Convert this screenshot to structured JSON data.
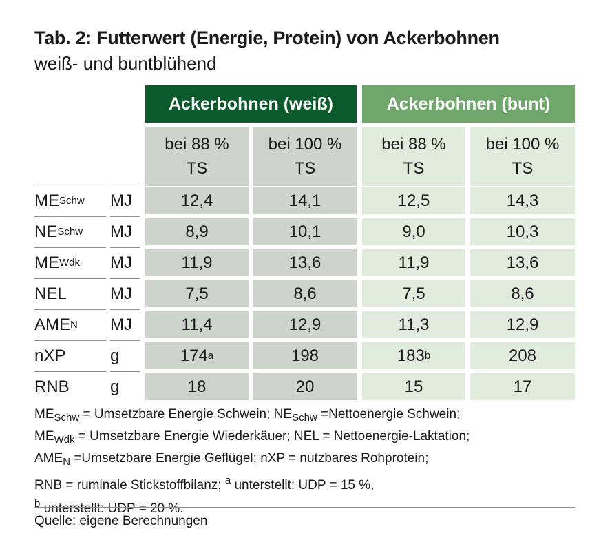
{
  "title": "Tab. 2: Futterwert (Energie, Protein) von Ackerbohnen",
  "subtitle": "weiß- und buntblühend",
  "groups": {
    "white": "Ackerbohnen (weiß)",
    "colored": "Ackerbohnen (bunt)"
  },
  "columns": [
    {
      "line1": "bei 88 %",
      "line2": "TS"
    },
    {
      "line1": "bei 100 %",
      "line2": "TS"
    },
    {
      "line1": "bei 88 %",
      "line2": "TS"
    },
    {
      "line1": "bei 100 %",
      "line2": "TS"
    }
  ],
  "rows": [
    {
      "label": "ME",
      "label_sub": "Schw",
      "unit": "MJ",
      "values": [
        "12,4",
        "14,1",
        "12,5",
        "14,3"
      ]
    },
    {
      "label": "NE",
      "label_sub": "Schw",
      "unit": "MJ",
      "values": [
        "8,9",
        "10,1",
        "9,0",
        "10,3"
      ]
    },
    {
      "label": "ME",
      "label_sub": "Wdk",
      "unit": "MJ",
      "values": [
        "11,9",
        "13,6",
        "11,9",
        "13,6"
      ]
    },
    {
      "label": "NEL",
      "label_sub": "",
      "unit": "MJ",
      "values": [
        "7,5",
        "8,6",
        "7,5",
        "8,6"
      ]
    },
    {
      "label": "AME",
      "label_sub": "N",
      "unit": "MJ",
      "values": [
        "11,4",
        "12,9",
        "11,3",
        "12,9"
      ]
    },
    {
      "label": "nXP",
      "label_sub": "",
      "unit": "g",
      "values": [
        "174",
        "198",
        "183",
        "208"
      ],
      "value_sups": [
        "a",
        "",
        "b",
        ""
      ]
    },
    {
      "label": "RNB",
      "label_sub": "",
      "unit": "g",
      "values": [
        "18",
        "20",
        "15",
        "17"
      ]
    }
  ],
  "notes": {
    "line1": {
      "t1": "ME",
      "s1": "Schw",
      "t2": " = Umsetzbare Energie Schwein; NE",
      "s2": "Schw",
      "t3": " =Nettoenergie Schwein;"
    },
    "line2": {
      "t1": "ME",
      "s1": "Wdk",
      "t2": " = Umsetzbare Energie Wiederkäuer; NEL = Nettoenergie-Laktation;"
    },
    "line3": {
      "t1": "AME",
      "s1": "N",
      "t2": " =Umsetzbare Energie Geflügel; nXP = nutzbares Rohprotein;"
    },
    "line4": {
      "t1": "RNB = ruminale Stickstoffbilanz; ",
      "sup1": "a",
      "t2": " unterstellt: UDP = 15 %,"
    },
    "line5": {
      "sup1": "b",
      "t2": " unterstellt: UDP = 20 %."
    }
  },
  "source": "Quelle: eigene Berechnungen",
  "colors": {
    "dark_green": "#0b5a2c",
    "light_green": "#6fa66b",
    "gray_cell": "#cdd4cc",
    "pale_green_cell": "#e0ebdd"
  }
}
